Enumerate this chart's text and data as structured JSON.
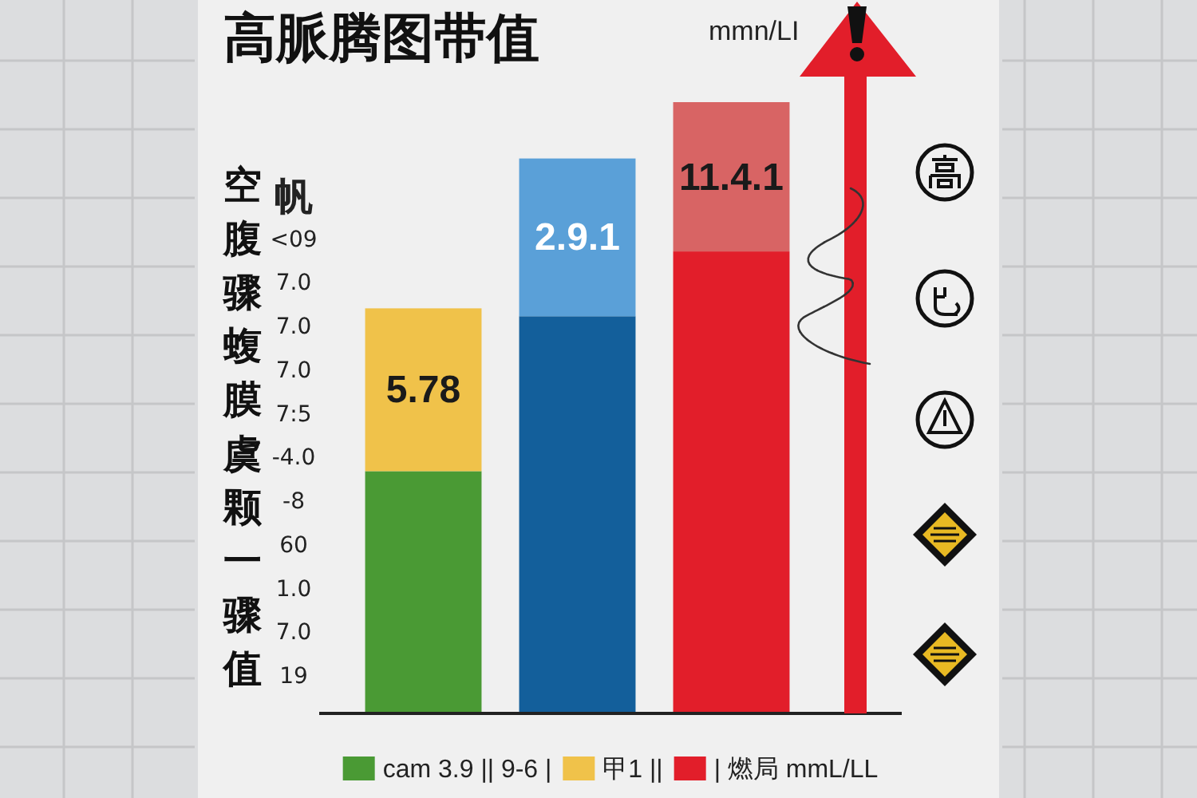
{
  "chart_data": {
    "type": "bar",
    "title": "高脈腾图带值",
    "subtitle": "mmn/LI",
    "ylabel": "空腹骤蝮膜虞颗一骤值",
    "categories": [
      null,
      null,
      null
    ],
    "stacked": true,
    "legend": "bottom",
    "series": [
      {
        "name": "cam 3.9 || 9-6 |",
        "color": "#4a9a34",
        "values": [
          8.6,
          null,
          null
        ]
      },
      {
        "name": "甲1 ||",
        "color": "#f0c24a",
        "values": [
          5.78,
          null,
          null
        ],
        "value_labels": [
          "5.78",
          null,
          null
        ]
      },
      {
        "name": "| 燃局 mmL/LL",
        "color": "#e21e2a",
        "values": [
          null,
          null,
          16.4
        ]
      },
      {
        "color": "#135f9b",
        "values": [
          null,
          14.1,
          null
        ]
      },
      {
        "color": "#5aa0d8",
        "values": [
          null,
          5.6,
          null
        ],
        "value_labels": [
          null,
          "2.9.1",
          null
        ]
      },
      {
        "color": "#d86464",
        "values": [
          null,
          null,
          5.3
        ],
        "value_labels": [
          null,
          null,
          "11.4.1"
        ]
      }
    ],
    "annotations": [
      "帆",
      "<09",
      "7.0",
      "7.0",
      "7.0",
      "7:5",
      "-4.0",
      "-8",
      "60",
      "1.0",
      "7.0",
      "19"
    ]
  }
}
